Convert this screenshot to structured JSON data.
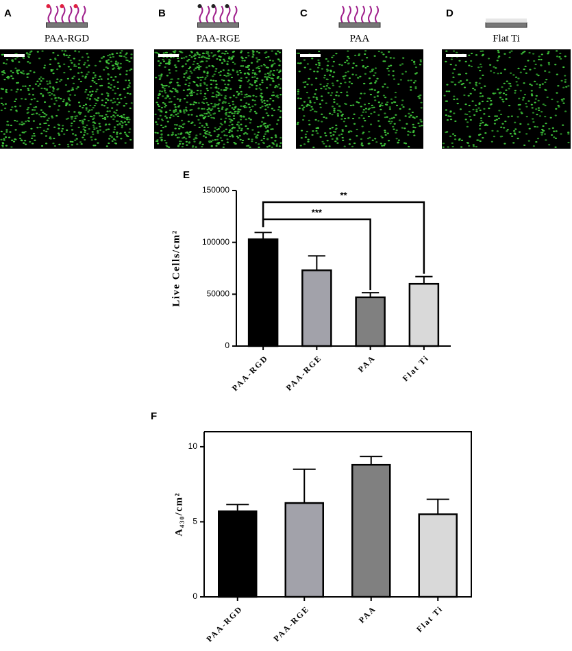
{
  "panels": [
    {
      "letter": "A",
      "label": "PAA-RGD"
    },
    {
      "letter": "B",
      "label": "PAA-RGE"
    },
    {
      "letter": "C",
      "label": "PAA"
    },
    {
      "letter": "D",
      "label": "Flat Ti"
    }
  ],
  "chart_data": [
    {
      "type": "bar",
      "panel": "E",
      "y_label": "Live Cells/cm²",
      "categories": [
        "PAA-RGD",
        "PAA-RGE",
        "PAA",
        "Flat Ti"
      ],
      "values": [
        103000,
        73000,
        47000,
        60000
      ],
      "errors": [
        6500,
        14000,
        4500,
        7000
      ],
      "colors": [
        "#000000",
        "#a2a2aa",
        "#808080",
        "#d9d9d9"
      ],
      "ylim": [
        0,
        150000
      ],
      "yticks": [
        0,
        50000,
        100000,
        150000
      ],
      "annotations": [
        {
          "label": "***",
          "between": [
            "PAA-RGD",
            "PAA"
          ]
        },
        {
          "label": "**",
          "between": [
            "PAA-RGD",
            "Flat Ti"
          ]
        }
      ]
    },
    {
      "type": "bar",
      "panel": "F",
      "y_label": "A₄₃₀/cm²",
      "categories": [
        "PAA-RGD",
        "PAA-RGE",
        "PAA",
        "Flat Ti"
      ],
      "values": [
        5.7,
        6.25,
        8.8,
        5.5
      ],
      "errors": [
        0.45,
        2.25,
        0.55,
        1.0
      ],
      "colors": [
        "#000000",
        "#a2a2aa",
        "#808080",
        "#d9d9d9"
      ],
      "ylim": [
        0,
        11
      ],
      "yticks": [
        0,
        5,
        10
      ]
    }
  ]
}
